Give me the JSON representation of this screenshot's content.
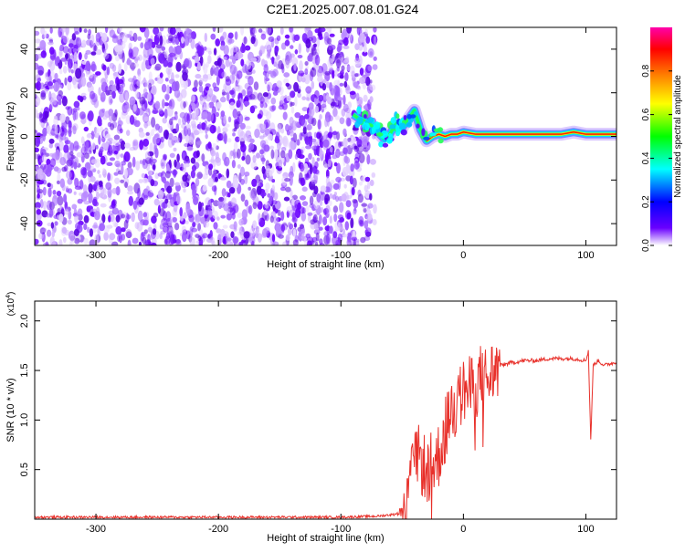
{
  "title": "C2E1.2025.007.08.01.G24",
  "chart_data": [
    {
      "type": "heatmap",
      "xlabel": "Height of straight line (km)",
      "ylabel": "Frequency (Hz)",
      "xlim": [
        -350,
        125
      ],
      "ylim": [
        -50,
        50
      ],
      "x_ticks": [
        -300,
        -200,
        -100,
        0,
        100
      ],
      "x_tick_labels": [
        "-300",
        "-200",
        "-100",
        "0",
        "100"
      ],
      "y_ticks": [
        -40,
        -20,
        0,
        20,
        40
      ],
      "y_tick_labels": [
        "-40",
        "-20",
        "0",
        "20",
        "40"
      ],
      "noise_region_x": [
        -350,
        -80
      ],
      "signal_track": {
        "x": [
          -90,
          -85,
          -80,
          -75,
          -70,
          -65,
          -60,
          -55,
          -50,
          -45,
          -40,
          -35,
          -30,
          -25,
          -20,
          -15,
          -10,
          -5,
          0,
          10,
          20,
          30,
          40,
          50,
          60,
          70,
          80,
          90,
          100,
          110,
          125
        ],
        "y": [
          10,
          8,
          7,
          5,
          2,
          -1,
          1,
          6,
          4,
          8,
          12,
          3,
          -2,
          0,
          1,
          0,
          1,
          1,
          2,
          1,
          1,
          1,
          1,
          1,
          1,
          1,
          1,
          2,
          1,
          1,
          1
        ]
      },
      "grid": false,
      "colorbar": {
        "label": "Normalized spectral amplitude",
        "range": [
          0,
          1
        ],
        "ticks": [
          0.0,
          0.2,
          0.4,
          0.6,
          0.8
        ],
        "tick_labels": [
          "0.0",
          "0.2",
          "0.4",
          "0.6",
          "0.8"
        ],
        "colors": [
          "#ffffff",
          "#6a00ff",
          "#0000ff",
          "#00ffff",
          "#00ff00",
          "#ffff00",
          "#ff8000",
          "#ff0000",
          "#ff00aa"
        ]
      }
    },
    {
      "type": "line",
      "xlabel": "Height of straight line (km)",
      "ylabel": "SNR (10 * v/v)",
      "y_multiplier": "(x10^4)",
      "y_multiplier_base": "(x10",
      "y_multiplier_exp": "4",
      "xlim": [
        -350,
        125
      ],
      "ylim": [
        0,
        2.2
      ],
      "x_ticks": [
        -300,
        -200,
        -100,
        0,
        100
      ],
      "x_tick_labels": [
        "-300",
        "-200",
        "-100",
        "0",
        "100"
      ],
      "y_ticks": [
        0.5,
        1.0,
        1.5,
        2.0
      ],
      "y_tick_labels": [
        "0.5",
        "1.0",
        "1.5",
        "2.0"
      ],
      "series": [
        {
          "color": "#e8302a",
          "x": [
            -350,
            -300,
            -250,
            -200,
            -150,
            -100,
            -70,
            -55,
            -50,
            -45,
            -40,
            -35,
            -30,
            -25,
            -20,
            -15,
            -10,
            -5,
            0,
            5,
            10,
            15,
            20,
            25,
            30,
            40,
            50,
            60,
            70,
            80,
            90,
            100,
            102,
            104,
            106,
            110,
            115,
            120,
            125
          ],
          "y": [
            0.02,
            0.02,
            0.02,
            0.02,
            0.02,
            0.02,
            0.03,
            0.05,
            0.1,
            0.3,
            0.7,
            0.6,
            0.5,
            0.55,
            0.65,
            0.9,
            1.1,
            1.15,
            1.3,
            1.3,
            1.35,
            1.45,
            1.4,
            1.5,
            1.55,
            1.58,
            1.6,
            1.6,
            1.62,
            1.62,
            1.62,
            1.6,
            1.7,
            0.8,
            1.55,
            1.6,
            1.55,
            1.57,
            1.58
          ]
        }
      ],
      "grid": false
    }
  ]
}
